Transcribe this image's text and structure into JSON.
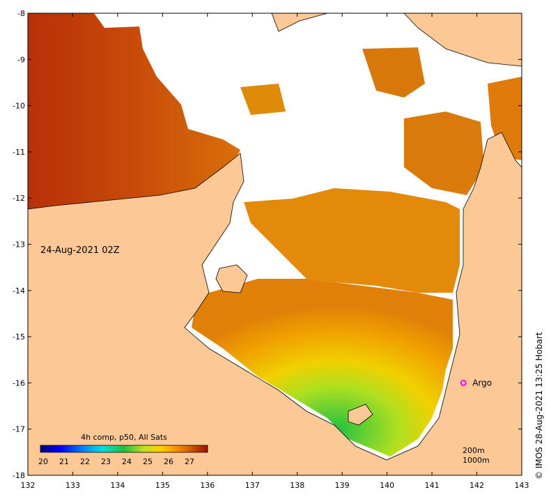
{
  "map": {
    "date_label": "24-Aug-2021 02Z",
    "copyright": "© IMOS 28-Aug-2021 13:25 Hobart",
    "x_ticks": [
      "132",
      "133",
      "134",
      "135",
      "136",
      "137",
      "138",
      "139",
      "140",
      "141",
      "142",
      "143"
    ],
    "y_ticks": [
      "-8",
      "-9",
      "-10",
      "-11",
      "-12",
      "-13",
      "-14",
      "-15",
      "-16",
      "-17",
      "-18"
    ],
    "lon_range": [
      132,
      143
    ],
    "lat_range": [
      -18,
      -8
    ],
    "argo": {
      "label": "Argo",
      "lon": 141.7,
      "lat": -16.0,
      "color": "#ff00ff"
    },
    "colorbar": {
      "title": "4h comp, p50, All Sats",
      "labels": [
        "20",
        "21",
        "22",
        "23",
        "24",
        "25",
        "26",
        "27"
      ],
      "range": [
        20,
        28
      ]
    },
    "isobaths": [
      "200m",
      "1000m"
    ],
    "colors": {
      "land": "#fcc896",
      "cloud": "#ffffff",
      "sst_warm": "#c0420a",
      "sst_mid": "#e48a0a",
      "sst_cool": "#3cc030"
    }
  }
}
